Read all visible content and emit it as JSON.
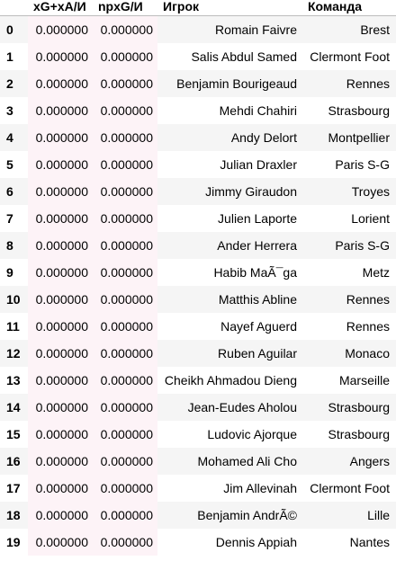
{
  "table": {
    "headers": {
      "index": "",
      "xg_xa": "xG+xA/И",
      "npxg": "npxG/И",
      "player": "Игрок",
      "team": "Команда"
    },
    "rows": [
      {
        "index": "0",
        "xg_xa": "0.000000",
        "npxg": "0.000000",
        "player": "Romain Faivre",
        "team": "Brest"
      },
      {
        "index": "1",
        "xg_xa": "0.000000",
        "npxg": "0.000000",
        "player": "Salis Abdul Samed",
        "team": "Clermont Foot"
      },
      {
        "index": "2",
        "xg_xa": "0.000000",
        "npxg": "0.000000",
        "player": "Benjamin Bourigeaud",
        "team": "Rennes"
      },
      {
        "index": "3",
        "xg_xa": "0.000000",
        "npxg": "0.000000",
        "player": "Mehdi Chahiri",
        "team": "Strasbourg"
      },
      {
        "index": "4",
        "xg_xa": "0.000000",
        "npxg": "0.000000",
        "player": "Andy Delort",
        "team": "Montpellier"
      },
      {
        "index": "5",
        "xg_xa": "0.000000",
        "npxg": "0.000000",
        "player": "Julian Draxler",
        "team": "Paris S-G"
      },
      {
        "index": "6",
        "xg_xa": "0.000000",
        "npxg": "0.000000",
        "player": "Jimmy Giraudon",
        "team": "Troyes"
      },
      {
        "index": "7",
        "xg_xa": "0.000000",
        "npxg": "0.000000",
        "player": "Julien Laporte",
        "team": "Lorient"
      },
      {
        "index": "8",
        "xg_xa": "0.000000",
        "npxg": "0.000000",
        "player": "Ander Herrera",
        "team": "Paris S-G"
      },
      {
        "index": "9",
        "xg_xa": "0.000000",
        "npxg": "0.000000",
        "player": "Habib MaÃ¯ga",
        "team": "Metz"
      },
      {
        "index": "10",
        "xg_xa": "0.000000",
        "npxg": "0.000000",
        "player": "Matthis Abline",
        "team": "Rennes"
      },
      {
        "index": "11",
        "xg_xa": "0.000000",
        "npxg": "0.000000",
        "player": "Nayef Aguerd",
        "team": "Rennes"
      },
      {
        "index": "12",
        "xg_xa": "0.000000",
        "npxg": "0.000000",
        "player": "Ruben Aguilar",
        "team": "Monaco"
      },
      {
        "index": "13",
        "xg_xa": "0.000000",
        "npxg": "0.000000",
        "player": "Cheikh Ahmadou Dieng",
        "team": "Marseille"
      },
      {
        "index": "14",
        "xg_xa": "0.000000",
        "npxg": "0.000000",
        "player": "Jean-Eudes Aholou",
        "team": "Strasbourg"
      },
      {
        "index": "15",
        "xg_xa": "0.000000",
        "npxg": "0.000000",
        "player": "Ludovic Ajorque",
        "team": "Strasbourg"
      },
      {
        "index": "16",
        "xg_xa": "0.000000",
        "npxg": "0.000000",
        "player": "Mohamed Ali Cho",
        "team": "Angers"
      },
      {
        "index": "17",
        "xg_xa": "0.000000",
        "npxg": "0.000000",
        "player": "Jim Allevinah",
        "team": "Clermont Foot"
      },
      {
        "index": "18",
        "xg_xa": "0.000000",
        "npxg": "0.000000",
        "player": "Benjamin AndrÃ©",
        "team": "Lille"
      },
      {
        "index": "19",
        "xg_xa": "0.000000",
        "npxg": "0.000000",
        "player": "Dennis Appiah",
        "team": "Nantes"
      }
    ]
  }
}
